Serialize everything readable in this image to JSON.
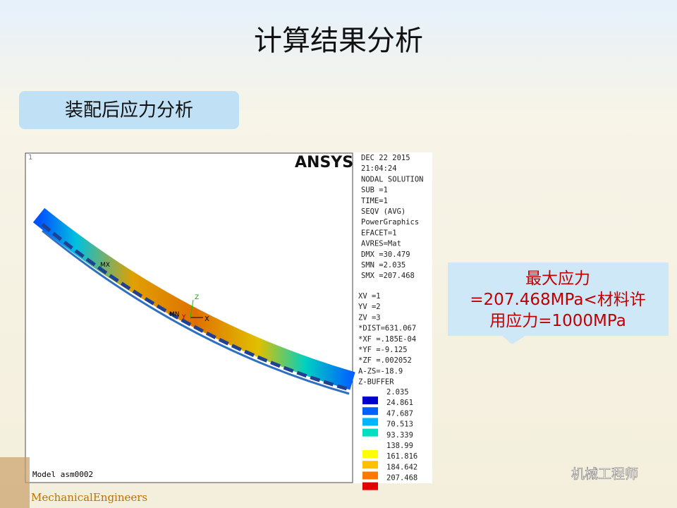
{
  "title": "计算结果分析",
  "subtitle": "装配后应力分析",
  "ansys": {
    "logo": "ANSYS",
    "window_number": "1",
    "info_top": [
      "DEC 22 2015",
      "21:04:24",
      "NODAL SOLUTION",
      "SUB =1",
      "TIME=1",
      "SEQV     (AVG)",
      "PowerGraphics",
      "EFACET=1",
      "AVRES=Mat",
      "DMX =30.479",
      "SMN =2.035",
      "SMX =207.468"
    ],
    "info_view": [
      "XV  =1",
      "YV  =2",
      "ZV  =3",
      "*DIST=631.067",
      "*XF  =.185E-04",
      "*YF  =-9.125",
      "*ZF  =.002052",
      "A-ZS=-18.9",
      "Z-BUFFER"
    ],
    "legend": {
      "labels": [
        "2.035",
        "24.861",
        "47.687",
        "70.513",
        "93.339",
        "138.99",
        "161.816",
        "184.642",
        "207.468"
      ],
      "colors": [
        "#0000c8",
        "#0060ff",
        "#00b4ff",
        "#00e0c0",
        "#ffff00",
        "#ffc000",
        "#ff7800",
        "#e00000"
      ]
    },
    "model": "Model asm0002",
    "mn": "MN",
    "mx": "MX",
    "axis_x": "X",
    "axis_y": "Y",
    "axis_z": "Z"
  },
  "callout": [
    "最大应力",
    "=207.468MPa<材料许",
    "用应力=1000MPa"
  ],
  "watermark": "机械工程师",
  "footer": "MechanicalEngineers"
}
